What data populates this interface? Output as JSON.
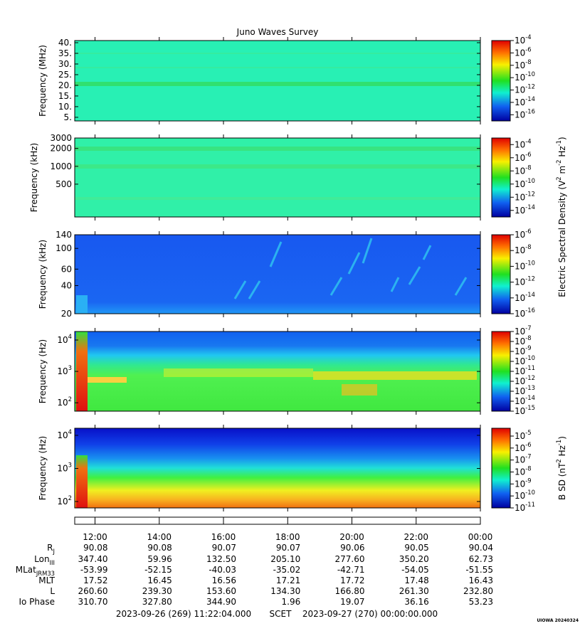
{
  "title": "Juno Waves Survey",
  "colorbar_label": "Electric Spectral Density (V^2 m^-2 Hz^-1)",
  "time_axis": {
    "xlim": [
      11.3678,
      24
    ],
    "xticks": [
      {
        "value": 12,
        "label": "12:00"
      },
      {
        "value": 14,
        "label": "14:00"
      },
      {
        "value": 16,
        "label": "16:00"
      },
      {
        "value": 18,
        "label": "18:00"
      },
      {
        "value": 20,
        "label": "20:00"
      },
      {
        "value": 22,
        "label": "22:00"
      },
      {
        "value": 24,
        "label": "00:00"
      }
    ]
  },
  "chart_data": [
    {
      "type": "spectrogram",
      "ylabel": "Frequency (MHz)",
      "log": false,
      "ylim": [
        3.3,
        41
      ],
      "yticks": [
        {
          "value": 5,
          "label": "5."
        },
        {
          "value": 10,
          "label": "10."
        },
        {
          "value": 15,
          "label": "15."
        },
        {
          "value": 20,
          "label": "20."
        },
        {
          "value": 25,
          "label": "25."
        },
        {
          "value": 30,
          "label": "30."
        },
        {
          "value": 35,
          "label": "35."
        },
        {
          "value": 40,
          "label": "40."
        }
      ],
      "colorbar": {
        "clim": [
          1e-17,
          0.0001
        ],
        "ticks": [
          {
            "value": 0.0001,
            "label": "10^-4"
          },
          {
            "value": 1e-06,
            "label": "10^-6"
          },
          {
            "value": 1e-08,
            "label": "10^-8"
          },
          {
            "value": 1e-10,
            "label": "10^-10"
          },
          {
            "value": 1e-12,
            "label": "10^-12"
          },
          {
            "value": 1e-14,
            "label": "10^-14"
          },
          {
            "value": 1e-16,
            "label": "10^-16"
          }
        ]
      }
    },
    {
      "type": "spectrogram",
      "ylabel": "Frequency (kHz)",
      "log": true,
      "ylim": [
        140,
        3000
      ],
      "yticks": [
        500,
        1000,
        2000,
        3000
      ],
      "colorbar": {
        "clim": [
          1e-15,
          0.001
        ],
        "ticks": [
          {
            "value": 0.0001,
            "label": "10^-4"
          },
          {
            "value": 1e-06,
            "label": "10^-6"
          },
          {
            "value": 1e-08,
            "label": "10^-8"
          },
          {
            "value": 1e-10,
            "label": "10^-10"
          },
          {
            "value": 1e-12,
            "label": "10^-12"
          },
          {
            "value": 1e-14,
            "label": "10^-14"
          }
        ]
      }
    },
    {
      "type": "spectrogram",
      "ylabel": "Frequency (kHz)",
      "log": true,
      "ylim": [
        20,
        140
      ],
      "yticks": [
        20,
        40,
        60,
        100,
        140
      ],
      "colorbar": {
        "clim": [
          1e-16,
          1e-06
        ],
        "ticks": [
          {
            "value": 1e-06,
            "label": "10^-6"
          },
          {
            "value": 1e-08,
            "label": "10^-8"
          },
          {
            "value": 1e-10,
            "label": "10^-10"
          },
          {
            "value": 1e-12,
            "label": "10^-12"
          },
          {
            "value": 1e-14,
            "label": "10^-14"
          },
          {
            "value": 1e-16,
            "label": "10^-16"
          }
        ]
      }
    },
    {
      "type": "spectrogram",
      "ylabel": "Frequency (Hz)",
      "log": true,
      "ylim": [
        54,
        18700
      ],
      "yticks": [
        {
          "value": 100,
          "label": "10^2"
        },
        {
          "value": 1000,
          "label": "10^3"
        },
        {
          "value": 10000,
          "label": "10^4"
        }
      ],
      "colorbar": {
        "clim": [
          1e-15,
          1e-07
        ],
        "ticks": [
          {
            "value": 1e-07,
            "label": "10^-7"
          },
          {
            "value": 1e-08,
            "label": "10^-8"
          },
          {
            "value": 1e-09,
            "label": "10^-9"
          },
          {
            "value": 1e-10,
            "label": "10^-10"
          },
          {
            "value": 1e-11,
            "label": "10^-11"
          },
          {
            "value": 1e-12,
            "label": "10^-12"
          },
          {
            "value": 1e-13,
            "label": "10^-13"
          },
          {
            "value": 1e-14,
            "label": "10^-14"
          },
          {
            "value": 1e-15,
            "label": "10^-15"
          }
        ]
      }
    },
    {
      "type": "spectrogram",
      "ylabel": "Frequency (Hz)",
      "log": true,
      "ylim": [
        64,
        16400
      ],
      "yticks": [
        {
          "value": 100,
          "label": "10^2"
        },
        {
          "value": 1000,
          "label": "10^3"
        },
        {
          "value": 10000,
          "label": "10^4"
        }
      ],
      "colorbar": {
        "label": "B SD (nT^2 Hz^-1)",
        "clim": [
          1e-11,
          4.5e-05
        ],
        "ticks": [
          {
            "value": 1e-05,
            "label": "10^-5"
          },
          {
            "value": 1e-06,
            "label": "10^-6"
          },
          {
            "value": 1e-07,
            "label": "10^-7"
          },
          {
            "value": 1e-08,
            "label": "10^-8"
          },
          {
            "value": 1e-09,
            "label": "10^-9"
          },
          {
            "value": 1e-10,
            "label": "10^-10"
          },
          {
            "value": 1e-11,
            "label": "10^-11"
          }
        ]
      }
    }
  ],
  "ephemeris": {
    "rows": [
      {
        "label": "R_J",
        "values": [
          "90.08",
          "90.08",
          "90.07",
          "90.07",
          "90.06",
          "90.05",
          "90.04"
        ]
      },
      {
        "label": "Lon_III",
        "values": [
          "347.40",
          "59.96",
          "132.50",
          "205.10",
          "277.60",
          "350.20",
          "62.73"
        ]
      },
      {
        "label": "MLat_JRM33",
        "values": [
          "-53.99",
          "-52.15",
          "-40.03",
          "-35.02",
          "-42.71",
          "-54.05",
          "-51.55"
        ]
      },
      {
        "label": "MLT",
        "values": [
          "17.52",
          "16.45",
          "16.56",
          "17.21",
          "17.72",
          "17.48",
          "16.43"
        ]
      },
      {
        "label": "L",
        "values": [
          "260.60",
          "239.30",
          "153.60",
          "134.30",
          "166.80",
          "261.30",
          "232.80"
        ]
      },
      {
        "label": "Io Phase",
        "values": [
          "310.70",
          "327.80",
          "344.90",
          "1.96",
          "19.07",
          "36.16",
          "53.23"
        ]
      }
    ]
  },
  "footer": {
    "start": "2023-09-26 (269) 11:22:04.000",
    "frame": "SCET",
    "end": "2023-09-27 (270) 00:00:00.000"
  },
  "credit": "UIOWA 20240324"
}
